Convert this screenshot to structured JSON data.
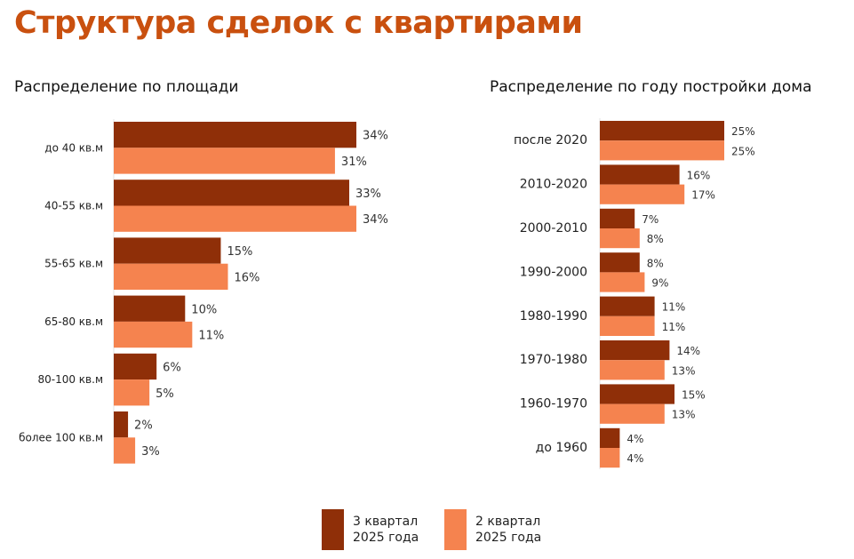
{
  "page": {
    "title": "Структура сделок с квартирами"
  },
  "colors": {
    "title": "#c9500f",
    "q3": "#8f2f08",
    "q2": "#f5834f"
  },
  "legend": [
    {
      "label": "3 квартал\n2025 года",
      "color": "#8f2f08"
    },
    {
      "label": "2 квартал\n2025 года",
      "color": "#f5834f"
    }
  ],
  "chart_data": [
    {
      "type": "bar",
      "orientation": "horizontal",
      "title": "Распределение по площади",
      "categories": [
        "до 40 кв.м",
        "40-55 кв.м",
        "55-65 кв.м",
        "65-80 кв.м",
        "80-100 кв.м",
        "более 100 кв.м"
      ],
      "series": [
        {
          "name": "3 квартал 2025 года",
          "values": [
            34,
            33,
            15,
            10,
            6,
            2
          ]
        },
        {
          "name": "2 квартал 2025 года",
          "values": [
            31,
            34,
            16,
            11,
            5,
            3
          ]
        }
      ],
      "unit": "%",
      "xlabel": "",
      "ylabel": "",
      "grid": false,
      "legend_position": "bottom"
    },
    {
      "type": "bar",
      "orientation": "horizontal",
      "title": "Распределение по году постройки дома",
      "categories": [
        "после 2020",
        "2010-2020",
        "2000-2010",
        "1990-2000",
        "1980-1990",
        "1970-1980",
        "1960-1970",
        "до 1960"
      ],
      "series": [
        {
          "name": "3 квартал 2025 года",
          "values": [
            25,
            16,
            7,
            8,
            11,
            14,
            15,
            4
          ]
        },
        {
          "name": "2 квартал 2025 года",
          "values": [
            25,
            17,
            8,
            9,
            11,
            13,
            13,
            4
          ]
        }
      ],
      "unit": "%",
      "xlabel": "",
      "ylabel": "",
      "grid": false,
      "legend_position": "bottom"
    }
  ]
}
